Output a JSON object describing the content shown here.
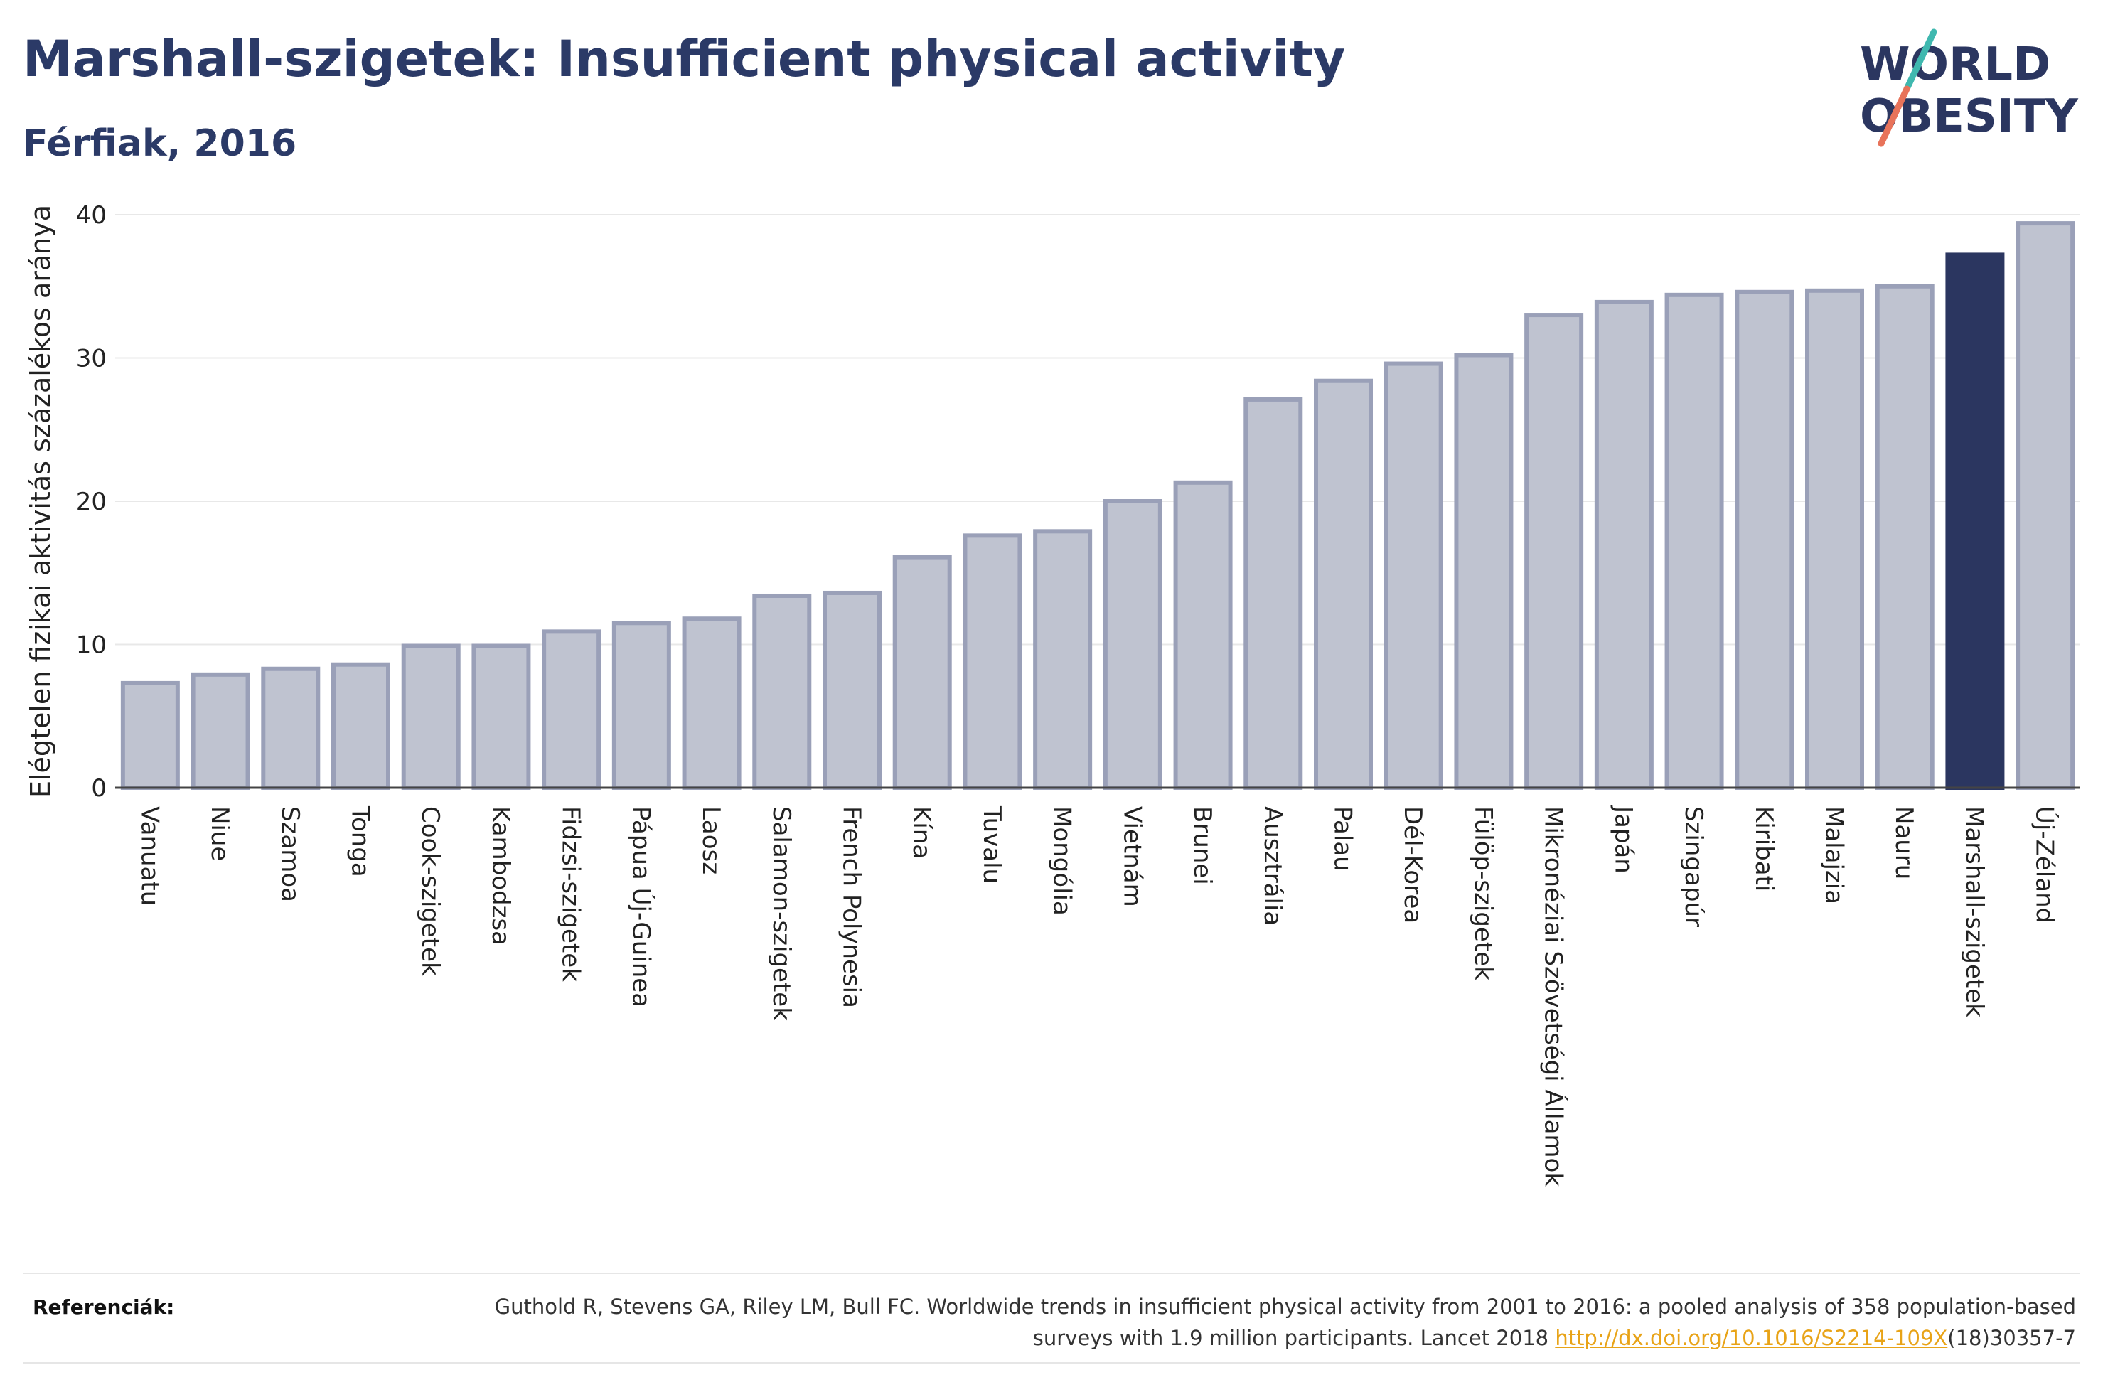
{
  "title": "Marshall-szigetek: Insufficient physical activity",
  "subtitle": "Férfiak, 2016",
  "logo": {
    "line1": "WORLD",
    "line2": "OBESITY",
    "accent_top": "#3fb8af",
    "accent_bottom": "#e8735a"
  },
  "references": {
    "label": "Referenciák:",
    "text_before": "Guthold R, Stevens GA, Riley LM, Bull FC. Worldwide trends in insufficient physical activity from 2001 to 2016: a pooled analysis of 358 population-based surveys with 1.9 million participants. Lancet 2018 ",
    "link": "http://dx.doi.org/10.1016/S2214-109X",
    "text_after": "(18)30357-7"
  },
  "chart_data": {
    "type": "bar",
    "ylabel": "Elégtelen fizikai aktivitás százalékos aránya",
    "xlabel": "",
    "ylim": [
      0,
      40
    ],
    "yticks": [
      0,
      10,
      20,
      30,
      40
    ],
    "grid": true,
    "highlight": "Marshall-szigetek",
    "colors": {
      "bar": "#bfc3d0",
      "bar_border": "#9aa0b8",
      "highlight": "#2b3660"
    },
    "categories": [
      "Vanuatu",
      "Niue",
      "Szamoa",
      "Tonga",
      "Cook-szigetek",
      "Kambodzsa",
      "Fidzsi-szigetek",
      "Pápua Új-Guinea",
      "Laosz",
      "Salamon-szigetek",
      "French Polynesia",
      "Kína",
      "Tuvalu",
      "Mongólia",
      "Vietnám",
      "Brunei",
      "Ausztrália",
      "Palau",
      "Dél-Korea",
      "Fülöp-szigetek",
      "Mikronéziai Szövetségi Államok",
      "Japán",
      "Szingapúr",
      "Kiribati",
      "Malajzia",
      "Nauru",
      "Marshall-szigetek",
      "Új-Zéland"
    ],
    "values": [
      7.3,
      7.9,
      8.3,
      8.6,
      9.9,
      9.9,
      10.9,
      11.5,
      11.8,
      13.4,
      13.6,
      16.1,
      17.6,
      17.9,
      20.0,
      21.3,
      27.1,
      28.4,
      29.6,
      30.2,
      33.0,
      33.9,
      34.4,
      34.6,
      34.7,
      35.0,
      37.2,
      39.4
    ]
  }
}
